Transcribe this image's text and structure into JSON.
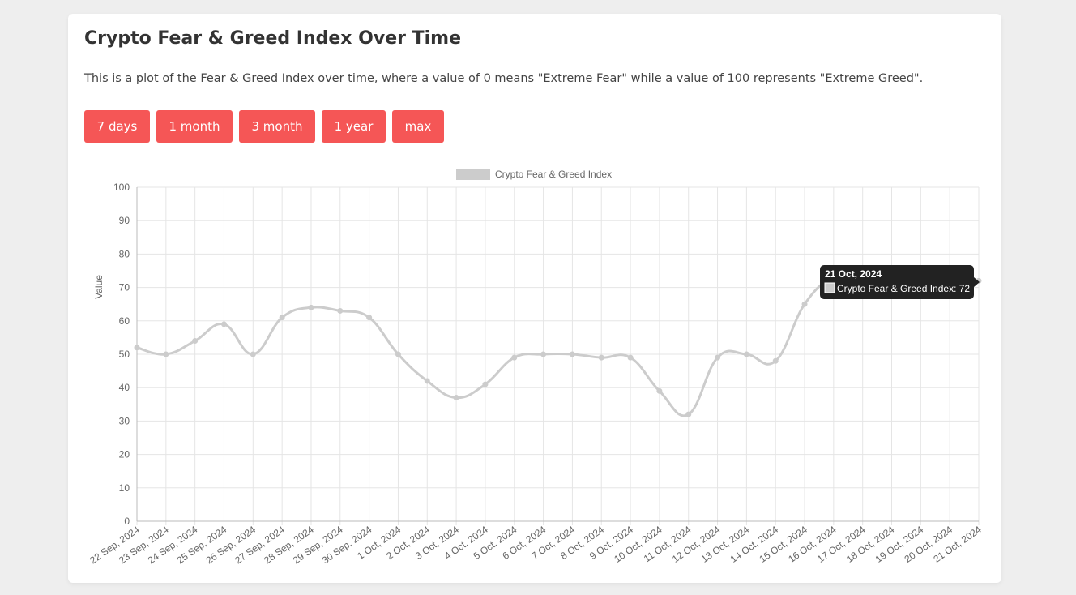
{
  "page": {
    "title": "Crypto Fear & Greed Index Over Time",
    "description": "This is a plot of the Fear & Greed Index over time, where a value of 0 means \"Extreme Fear\" while a value of 100 represents \"Extreme Greed\"."
  },
  "buttons": [
    {
      "label": "7 days"
    },
    {
      "label": "1 month"
    },
    {
      "label": "3 month"
    },
    {
      "label": "1 year"
    },
    {
      "label": "max"
    }
  ],
  "colors": {
    "accent": "#f55656",
    "series_line": "#cccccc",
    "grid": "#e5e5e5",
    "tooltip_bg": "#222222"
  },
  "chart_data": {
    "type": "line",
    "ylabel": "Value",
    "ylim": [
      0,
      100
    ],
    "yticks": [
      0,
      10,
      20,
      30,
      40,
      50,
      60,
      70,
      80,
      90,
      100
    ],
    "grid": true,
    "legend_position": "top-center",
    "categories": [
      "22 Sep, 2024",
      "23 Sep, 2024",
      "24 Sep, 2024",
      "25 Sep, 2024",
      "26 Sep, 2024",
      "27 Sep, 2024",
      "28 Sep, 2024",
      "29 Sep, 2024",
      "30 Sep, 2024",
      "1 Oct, 2024",
      "2 Oct, 2024",
      "3 Oct, 2024",
      "4 Oct, 2024",
      "5 Oct, 2024",
      "6 Oct, 2024",
      "7 Oct, 2024",
      "8 Oct, 2024",
      "9 Oct, 2024",
      "10 Oct, 2024",
      "11 Oct, 2024",
      "12 Oct, 2024",
      "13 Oct, 2024",
      "14 Oct, 2024",
      "15 Oct, 2024",
      "16 Oct, 2024",
      "17 Oct, 2024",
      "18 Oct, 2024",
      "19 Oct, 2024",
      "20 Oct, 2024",
      "21 Oct, 2024"
    ],
    "series": [
      {
        "name": "Crypto Fear & Greed Index",
        "values": [
          52,
          50,
          54,
          59,
          50,
          61,
          64,
          63,
          61,
          50,
          42,
          37,
          41,
          49,
          50,
          50,
          49,
          49,
          39,
          32,
          49,
          50,
          48,
          65,
          73,
          73,
          73,
          72,
          73,
          72
        ]
      }
    ],
    "tooltip": {
      "title": "21 Oct, 2024",
      "label": "Crypto Fear & Greed Index: 72"
    }
  }
}
